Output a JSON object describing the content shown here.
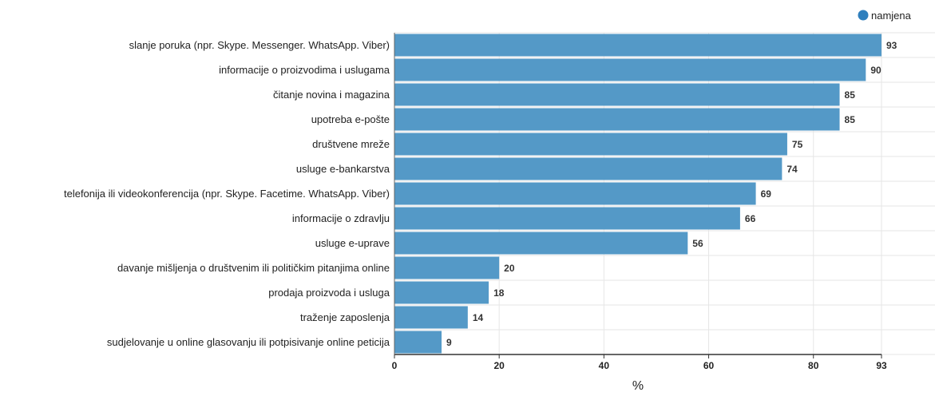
{
  "chart_data": {
    "type": "bar",
    "orientation": "horizontal",
    "categories": [
      "slanje poruka (npr. Skype. Messenger. WhatsApp. Viber)",
      "informacije o proizvodima i uslugama",
      "čitanje novina i magazina",
      "upotreba e-pošte",
      "društvene mreže",
      "usluge e-bankarstva",
      "telefonija ili videokonferencija (npr. Skype. Facetime. WhatsApp. Viber)",
      "informacije o zdravlju",
      "usluge e-uprave",
      "davanje mišljenja o društvenim ili političkim pitanjima online",
      "prodaja proizvoda i usluga",
      "traženje zaposlenja",
      "sudjelovanje u online glasovanju ili potpisivanje online peticija"
    ],
    "series": [
      {
        "name": "namjena",
        "values": [
          93,
          90,
          85,
          85,
          75,
          74,
          69,
          66,
          56,
          20,
          18,
          14,
          9
        ]
      }
    ],
    "xlabel": "%",
    "ylabel": "",
    "xlim": [
      0,
      93
    ],
    "xticks": [
      "0",
      "20",
      "40",
      "60",
      "80",
      "93"
    ],
    "grid": true,
    "legend_position": "top-right",
    "bar_color": "#5499c7",
    "legend_dot_color": "#2f7fbd"
  }
}
